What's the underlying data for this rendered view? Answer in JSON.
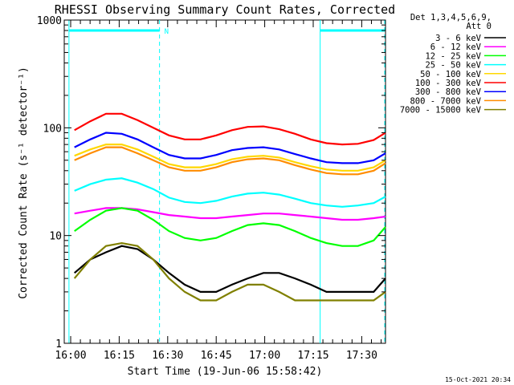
{
  "chart_data": {
    "type": "line",
    "title": "RHESSI Observing Summary Count Rates, Corrected",
    "xlabel": "Start Time (19-Jun-06 15:58:42)",
    "ylabel": "Corrected Count Rate (s⁻¹ detector⁻¹)",
    "x_unit": "minutes after 16:00 on 19-Jun-06",
    "xlim": [
      -1.3,
      39.5
    ],
    "ylim": [
      1,
      1000
    ],
    "y_scale": "log",
    "grid": false,
    "legend_position": "outside-right",
    "x_ticks": [
      {
        "value": 0,
        "label": "16:00"
      },
      {
        "value": 15,
        "label": "16:15"
      },
      {
        "value": 30,
        "label": "16:30"
      },
      {
        "value": 45,
        "label": "16:45"
      },
      {
        "value": 60,
        "label": "17:00"
      },
      {
        "value": 75,
        "label": "17:15"
      },
      {
        "value": 90,
        "label": "17:30"
      }
    ],
    "x_tick_positions_note": "",
    "y_ticks": [
      {
        "value": 1,
        "label": "1"
      },
      {
        "value": 10,
        "label": "10"
      },
      {
        "value": 100,
        "label": "100"
      },
      {
        "value": 1000,
        "label": "1000"
      }
    ],
    "legend_header": [
      "Det 1,3,4,5,6,9,",
      "Att 0"
    ],
    "series": [
      {
        "name": "3 - 6 keV",
        "color": "#000000",
        "x": [
          0,
          2,
          4,
          6,
          8,
          10,
          12,
          14,
          16,
          18,
          20,
          22,
          24,
          26,
          28,
          30,
          32,
          34,
          36,
          38,
          39.5
        ],
        "values": [
          4.5,
          6,
          7,
          8,
          7.5,
          6,
          4.5,
          3.5,
          3,
          3,
          3.5,
          4,
          4.5,
          4.5,
          4,
          3.5,
          3,
          3,
          3,
          3,
          4
        ]
      },
      {
        "name": "6 - 12 keV",
        "color": "#ff00ff",
        "x": [
          0,
          2,
          4,
          6,
          8,
          10,
          12,
          14,
          16,
          18,
          20,
          22,
          24,
          26,
          28,
          30,
          32,
          34,
          36,
          38,
          39.5
        ],
        "values": [
          16,
          17,
          18,
          18,
          17.5,
          16.5,
          15.5,
          15,
          14.5,
          14.5,
          15,
          15.5,
          16,
          16,
          15.5,
          15,
          14.5,
          14,
          14,
          14.5,
          15
        ]
      },
      {
        "name": "12 - 25 keV",
        "color": "#00ff00",
        "x": [
          0,
          2,
          4,
          6,
          8,
          10,
          12,
          14,
          16,
          18,
          20,
          22,
          24,
          26,
          28,
          30,
          32,
          34,
          36,
          38,
          39.5
        ],
        "values": [
          11,
          14,
          17,
          18,
          17,
          14,
          11,
          9.5,
          9,
          9.5,
          11,
          12.5,
          13,
          12.5,
          11,
          9.5,
          8.5,
          8,
          8,
          9,
          12
        ]
      },
      {
        "name": "25 - 50 keV",
        "color": "#00ffff",
        "x": [
          0,
          2,
          4,
          6,
          8,
          10,
          12,
          14,
          16,
          18,
          20,
          22,
          24,
          26,
          28,
          30,
          32,
          34,
          36,
          38,
          39.5
        ],
        "values": [
          26,
          30,
          33,
          34,
          31,
          27,
          22.5,
          20.5,
          20,
          21,
          23,
          24.5,
          25,
          24,
          22,
          20,
          19,
          18.5,
          19,
          20,
          23
        ]
      },
      {
        "name": "50 - 100 keV",
        "color": "#ffd700",
        "x": [
          0,
          2,
          4,
          6,
          8,
          10,
          12,
          14,
          16,
          18,
          20,
          22,
          24,
          26,
          28,
          30,
          32,
          34,
          36,
          38,
          39.5
        ],
        "values": [
          55,
          63,
          70,
          70,
          63,
          54,
          46,
          43,
          43,
          46,
          51,
          54,
          55,
          53,
          48,
          44,
          41,
          40,
          40,
          43,
          50
        ]
      },
      {
        "name": "100 - 300 keV",
        "color": "#ff0000",
        "x": [
          0,
          2,
          4,
          6,
          8,
          10,
          12,
          14,
          16,
          18,
          20,
          22,
          24,
          26,
          28,
          30,
          32,
          34,
          36,
          38,
          39.5
        ],
        "values": [
          95,
          115,
          135,
          135,
          118,
          100,
          85,
          78,
          78,
          85,
          95,
          102,
          103,
          97,
          88,
          78,
          72,
          70,
          71,
          77,
          90
        ]
      },
      {
        "name": "300 - 800 keV",
        "color": "#0000ff",
        "x": [
          0,
          2,
          4,
          6,
          8,
          10,
          12,
          14,
          16,
          18,
          20,
          22,
          24,
          26,
          28,
          30,
          32,
          34,
          36,
          38,
          39.5
        ],
        "values": [
          66,
          78,
          90,
          88,
          78,
          66,
          56,
          52,
          52,
          56,
          62,
          65,
          66,
          63,
          57,
          52,
          48,
          47,
          47,
          50,
          58
        ]
      },
      {
        "name": "800 - 7000 keV",
        "color": "#ff8c00",
        "x": [
          0,
          2,
          4,
          6,
          8,
          10,
          12,
          14,
          16,
          18,
          20,
          22,
          24,
          26,
          28,
          30,
          32,
          34,
          36,
          38,
          39.5
        ],
        "values": [
          50,
          58,
          66,
          66,
          58,
          50,
          43,
          40,
          40,
          43,
          48,
          51,
          52,
          50,
          45,
          41,
          38,
          37,
          37,
          40,
          47
        ]
      },
      {
        "name": "7000 - 15000 keV",
        "color": "#808000",
        "x": [
          0,
          2,
          4,
          6,
          8,
          10,
          12,
          14,
          16,
          18,
          20,
          22,
          24,
          26,
          28,
          30,
          32,
          34,
          36,
          38,
          39.5
        ],
        "values": [
          4,
          6,
          8,
          8.5,
          8,
          6,
          4,
          3,
          2.5,
          2.5,
          3,
          3.5,
          3.5,
          3,
          2.5,
          2.5,
          2.5,
          2.5,
          2.5,
          2.5,
          3
        ]
      }
    ],
    "annotations": [
      {
        "type": "flag-bar",
        "label": "N",
        "x_start": -0.7,
        "x_end": 10.8,
        "value": 800,
        "color": "#00ffff"
      },
      {
        "type": "flag-bar",
        "label": "",
        "x_start": 31.2,
        "x_end": 39.4,
        "value": 800,
        "color": "#00ffff"
      },
      {
        "type": "vline",
        "x": -0.7,
        "style": "solid",
        "color": "#00ffff"
      },
      {
        "type": "vline",
        "x": 10.8,
        "style": "dashed",
        "color": "#00ffff"
      },
      {
        "type": "vline",
        "x": 31.2,
        "style": "solid",
        "color": "#00ffff"
      },
      {
        "type": "vline",
        "x": 39.4,
        "style": "dashed",
        "color": "#00ffff"
      }
    ]
  },
  "footer": {
    "date_stamp": "15-Oct-2021 20:34"
  },
  "colors": {
    "background": "#ffffff",
    "axis": "#000000",
    "text": "#000000"
  }
}
